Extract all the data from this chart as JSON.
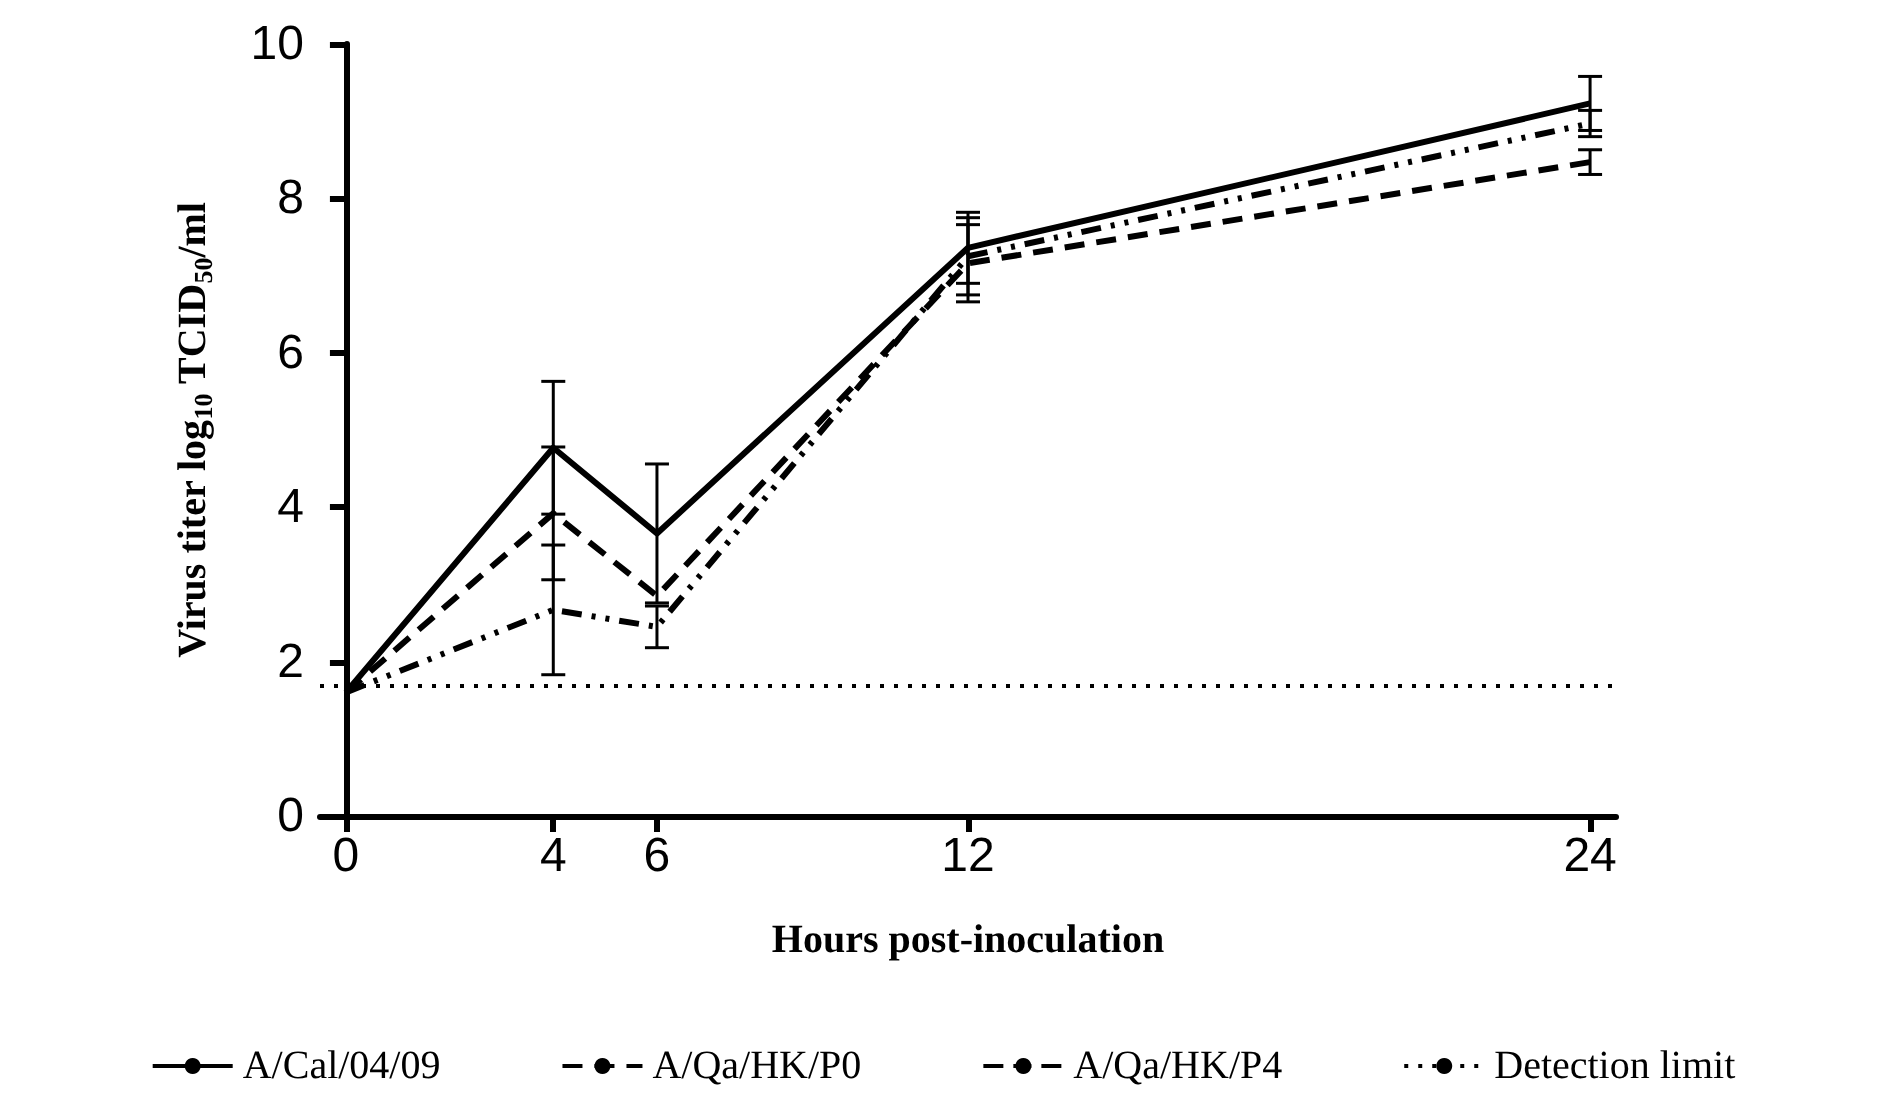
{
  "chart_data": {
    "type": "line",
    "xlabel": "Hours post-inoculation",
    "ylabel": "Virus titer log$_{10}$ TCID$_{50}$/ml",
    "x": [
      0,
      4,
      6,
      12,
      24
    ],
    "xlim": [
      -0.5,
      24.5
    ],
    "xticks": [
      0,
      4,
      6,
      12,
      24
    ],
    "ylim": [
      0,
      10
    ],
    "yticks": [
      0,
      2,
      4,
      6,
      8,
      10
    ],
    "grid": false,
    "legend": "bottom",
    "marker": "none",
    "series": [
      {
        "name": "A/Cal/04/09",
        "color": "#000000",
        "line_style": "solid",
        "values": [
          1.6,
          4.77,
          3.66,
          7.36,
          9.23
        ],
        "errors": [
          null,
          0.86,
          0.9,
          0.46,
          0.35
        ]
      },
      {
        "name": "A/Qa/HK/P0",
        "color": "#000000",
        "line_style": "dashed",
        "values": [
          1.6,
          3.92,
          2.85,
          7.16,
          8.47
        ],
        "errors": [
          null,
          0.86,
          null,
          0.5,
          0.16
        ]
      },
      {
        "name": "A/Qa/HK/P4",
        "color": "#000000",
        "line_style": "dashdot",
        "values": [
          1.6,
          2.67,
          2.45,
          7.25,
          8.97
        ],
        "errors": [
          null,
          0.84,
          0.27,
          0.5,
          0.17
        ]
      }
    ],
    "ref_lines": [
      {
        "axis": "y",
        "value": 1.7,
        "label": "Detection limit",
        "color": "#000000",
        "line_style": "dotted"
      }
    ]
  }
}
